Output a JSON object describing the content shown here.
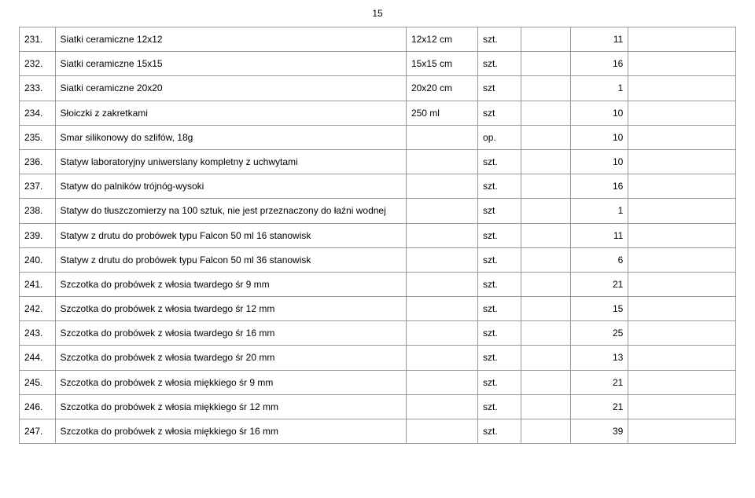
{
  "page_number": "15",
  "rows": [
    {
      "num": "231.",
      "desc": "Siatki ceramiczne 12x12",
      "spec": "12x12 cm",
      "unit": "szt.",
      "qty": "11"
    },
    {
      "num": "232.",
      "desc": "Siatki ceramiczne 15x15",
      "spec": "15x15 cm",
      "unit": "szt.",
      "qty": "16"
    },
    {
      "num": "233.",
      "desc": "Siatki ceramiczne 20x20",
      "spec": "20x20 cm",
      "unit": "szt",
      "qty": "1"
    },
    {
      "num": "234.",
      "desc": "Słoiczki z zakretkami",
      "spec": "250 ml",
      "unit": "szt",
      "qty": "10"
    },
    {
      "num": "235.",
      "desc": "Smar silikonowy do szlifów, 18g",
      "spec": "",
      "unit": "op.",
      "qty": "10"
    },
    {
      "num": "236.",
      "desc": "Statyw laboratoryjny uniwerslany kompletny z uchwytami",
      "spec": "",
      "unit": "szt.",
      "qty": "10"
    },
    {
      "num": "237.",
      "desc": "Statyw do palników trójnóg-wysoki",
      "spec": "",
      "unit": "szt.",
      "qty": "16"
    },
    {
      "num": "238.",
      "desc": "Statyw do tłuszczomierzy na 100 sztuk, nie jest przeznaczony do łaźni wodnej",
      "spec": "",
      "unit": "szt",
      "qty": "1"
    },
    {
      "num": "239.",
      "desc": "Statyw z drutu do probówek typu Falcon 50 ml 16 stanowisk",
      "spec": "",
      "unit": "szt.",
      "qty": "11"
    },
    {
      "num": "240.",
      "desc": "Statyw z drutu do probówek typu Falcon 50 ml 36 stanowisk",
      "spec": "",
      "unit": "szt.",
      "qty": "6"
    },
    {
      "num": "241.",
      "desc": "Szczotka do probówek z włosia twardego śr 9 mm",
      "spec": "",
      "unit": "szt.",
      "qty": "21"
    },
    {
      "num": "242.",
      "desc": "Szczotka do probówek z włosia twardego śr 12 mm",
      "spec": "",
      "unit": "szt.",
      "qty": "15"
    },
    {
      "num": "243.",
      "desc": "Szczotka do probówek z włosia twardego śr 16 mm",
      "spec": "",
      "unit": "szt.",
      "qty": "25"
    },
    {
      "num": "244.",
      "desc": "Szczotka do probówek z włosia twardego śr 20 mm",
      "spec": "",
      "unit": "szt.",
      "qty": "13"
    },
    {
      "num": "245.",
      "desc": "Szczotka do probówek z włosia miękkiego śr 9 mm",
      "spec": "",
      "unit": "szt.",
      "qty": "21"
    },
    {
      "num": "246.",
      "desc": "Szczotka do probówek z włosia miękkiego śr 12 mm",
      "spec": "",
      "unit": "szt.",
      "qty": "21"
    },
    {
      "num": "247.",
      "desc": "Szczotka do probówek z włosia miękkiego śr 16 mm",
      "spec": "",
      "unit": "szt.",
      "qty": "39"
    }
  ]
}
